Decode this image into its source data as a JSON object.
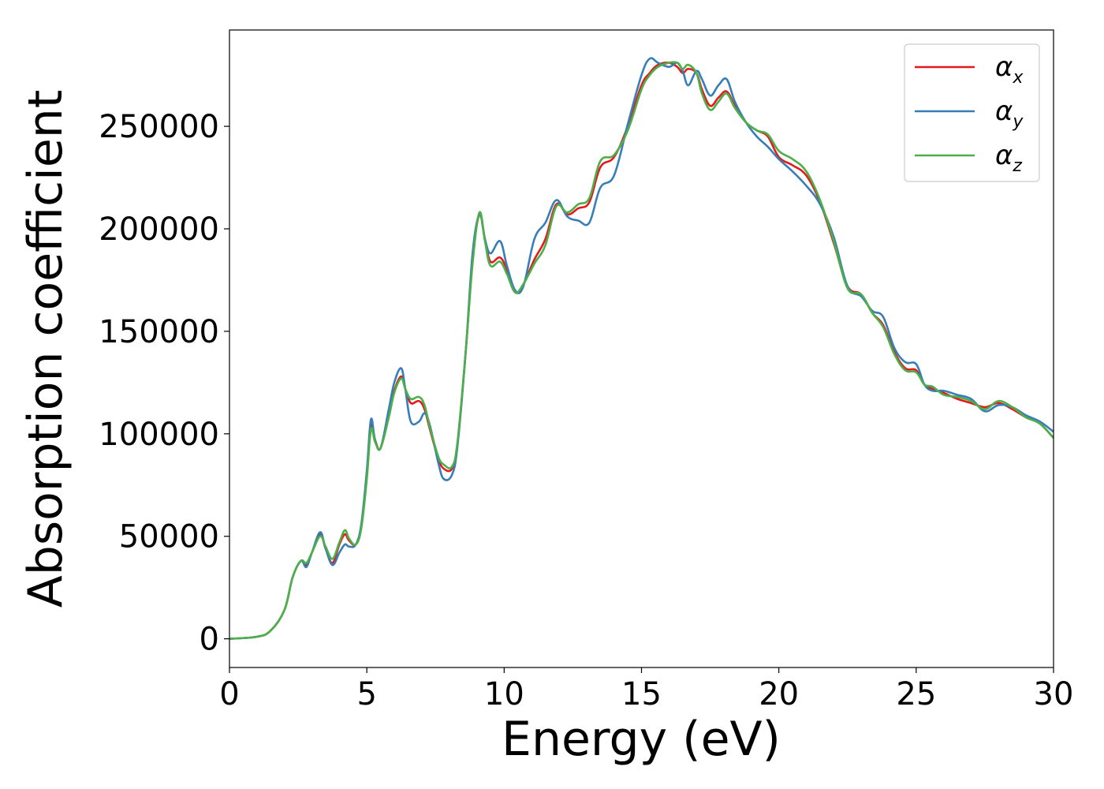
{
  "chart_data": {
    "type": "line",
    "xlabel": "Energy (eV)",
    "ylabel": "Absorption coefficient",
    "xlim": [
      0,
      30
    ],
    "ylim": [
      -14000,
      297000
    ],
    "xticks": [
      0,
      5,
      10,
      15,
      20,
      25,
      30
    ],
    "yticks": [
      0,
      50000,
      100000,
      150000,
      200000,
      250000
    ],
    "xtick_labels": [
      "0",
      "5",
      "10",
      "15",
      "20",
      "25",
      "30"
    ],
    "ytick_labels": [
      "0",
      "50000",
      "100000",
      "150000",
      "200000",
      "250000"
    ],
    "grid": false,
    "legend_position": "top-right",
    "series": [
      {
        "name": "α",
        "subscript": "x",
        "color": "#e41a1c",
        "x": [
          0,
          1.0,
          1.5,
          2.0,
          2.3,
          2.6,
          2.8,
          3.0,
          3.3,
          3.5,
          3.75,
          4.0,
          4.2,
          4.35,
          4.6,
          4.8,
          5.0,
          5.15,
          5.3,
          5.5,
          5.8,
          6.0,
          6.25,
          6.4,
          6.6,
          6.9,
          7.1,
          7.3,
          7.6,
          7.8,
          8.1,
          8.3,
          8.6,
          8.85,
          9.1,
          9.3,
          9.5,
          9.85,
          10.1,
          10.4,
          10.7,
          11.1,
          11.5,
          11.9,
          12.3,
          12.7,
          13.1,
          13.5,
          14.0,
          14.5,
          15.0,
          15.3,
          15.6,
          16.0,
          16.3,
          16.5,
          16.7,
          17.0,
          17.2,
          17.5,
          17.8,
          18.1,
          18.4,
          18.8,
          19.2,
          19.6,
          20.0,
          20.5,
          21.0,
          21.5,
          22.0,
          22.5,
          23.0,
          23.4,
          23.8,
          24.2,
          24.6,
          25.0,
          25.3,
          25.6,
          26.0,
          26.5,
          27.0,
          27.5,
          28.0,
          28.5,
          29.0,
          29.5,
          30.0
        ],
        "y": [
          0,
          1000,
          4000,
          14000,
          30000,
          38000,
          36000,
          42000,
          51000,
          44000,
          37000,
          46000,
          51000,
          48000,
          46000,
          55000,
          80000,
          104000,
          97000,
          93000,
          110000,
          121000,
          128000,
          122000,
          115000,
          116000,
          112000,
          102000,
          88000,
          83000,
          83000,
          95000,
          140000,
          185000,
          207000,
          195000,
          184000,
          186000,
          180000,
          169000,
          173000,
          185000,
          195000,
          212000,
          207000,
          210000,
          213000,
          230000,
          235000,
          250000,
          270000,
          276000,
          280000,
          281000,
          279000,
          276000,
          278000,
          276000,
          268000,
          260000,
          264000,
          267000,
          260000,
          252000,
          248000,
          245000,
          235000,
          231000,
          226000,
          213000,
          193000,
          172000,
          168000,
          159000,
          153000,
          140000,
          132000,
          131000,
          124000,
          122000,
          120000,
          117000,
          115000,
          113000,
          115000,
          112000,
          108000,
          105000,
          98000
        ]
      },
      {
        "name": "α",
        "subscript": "y",
        "color": "#377eb8",
        "x": [
          0,
          1.0,
          1.5,
          2.0,
          2.3,
          2.6,
          2.8,
          3.0,
          3.3,
          3.5,
          3.75,
          4.0,
          4.2,
          4.35,
          4.6,
          4.8,
          5.0,
          5.15,
          5.3,
          5.5,
          5.8,
          6.0,
          6.25,
          6.4,
          6.6,
          6.9,
          7.1,
          7.3,
          7.6,
          7.8,
          8.1,
          8.3,
          8.6,
          8.85,
          9.1,
          9.3,
          9.5,
          9.85,
          10.1,
          10.4,
          10.7,
          11.1,
          11.5,
          11.9,
          12.3,
          12.7,
          13.1,
          13.5,
          14.0,
          14.5,
          15.0,
          15.3,
          15.6,
          16.0,
          16.3,
          16.5,
          16.7,
          17.0,
          17.2,
          17.5,
          17.8,
          18.1,
          18.4,
          18.8,
          19.2,
          19.6,
          20.0,
          20.5,
          21.0,
          21.5,
          22.0,
          22.5,
          23.0,
          23.4,
          23.8,
          24.2,
          24.6,
          25.0,
          25.3,
          25.6,
          26.0,
          26.5,
          27.0,
          27.5,
          28.0,
          28.5,
          29.0,
          29.5,
          30.0
        ],
        "y": [
          0,
          1000,
          4000,
          14000,
          30000,
          38000,
          35000,
          42000,
          52000,
          44000,
          36000,
          42000,
          46000,
          45000,
          46000,
          56000,
          82000,
          107000,
          97000,
          93000,
          112000,
          125000,
          132000,
          122000,
          106000,
          106000,
          110000,
          104000,
          86000,
          78000,
          80000,
          94000,
          140000,
          188000,
          207000,
          195000,
          188000,
          194000,
          182000,
          170000,
          172000,
          195000,
          203000,
          214000,
          206000,
          204000,
          203000,
          220000,
          226000,
          251000,
          275000,
          283000,
          281000,
          279000,
          281000,
          277000,
          270000,
          277000,
          273000,
          265000,
          270000,
          273000,
          262000,
          252000,
          245000,
          240000,
          234000,
          228000,
          221000,
          212000,
          196000,
          172000,
          167000,
          160000,
          157000,
          142000,
          135000,
          134000,
          124000,
          121000,
          121000,
          119000,
          117000,
          111000,
          114000,
          113000,
          109000,
          106000,
          101000
        ]
      },
      {
        "name": "α",
        "subscript": "z",
        "color": "#4daf4a",
        "x": [
          0,
          1.0,
          1.5,
          2.0,
          2.3,
          2.6,
          2.8,
          3.0,
          3.3,
          3.5,
          3.75,
          4.0,
          4.2,
          4.35,
          4.6,
          4.8,
          5.0,
          5.15,
          5.3,
          5.5,
          5.8,
          6.0,
          6.25,
          6.4,
          6.6,
          6.9,
          7.1,
          7.3,
          7.6,
          7.8,
          8.1,
          8.3,
          8.6,
          8.85,
          9.1,
          9.3,
          9.5,
          9.85,
          10.1,
          10.4,
          10.7,
          11.1,
          11.5,
          11.9,
          12.3,
          12.7,
          13.1,
          13.5,
          14.0,
          14.5,
          15.0,
          15.3,
          15.6,
          16.0,
          16.3,
          16.5,
          16.7,
          17.0,
          17.2,
          17.5,
          17.8,
          18.1,
          18.4,
          18.8,
          19.2,
          19.6,
          20.0,
          20.5,
          21.0,
          21.5,
          22.0,
          22.5,
          23.0,
          23.4,
          23.8,
          24.2,
          24.6,
          25.0,
          25.3,
          25.6,
          26.0,
          26.5,
          27.0,
          27.5,
          28.0,
          28.5,
          29.0,
          29.5,
          30.0
        ],
        "y": [
          0,
          1000,
          4000,
          14000,
          30000,
          38000,
          37000,
          42000,
          50000,
          45000,
          39000,
          47000,
          53000,
          49000,
          46000,
          54000,
          78000,
          102000,
          96000,
          93000,
          108000,
          120000,
          127000,
          122000,
          117000,
          118000,
          114000,
          103000,
          89000,
          85000,
          84000,
          96000,
          140000,
          183000,
          208000,
          194000,
          182000,
          184000,
          178000,
          169000,
          173000,
          183000,
          192000,
          211000,
          208000,
          212000,
          215000,
          233000,
          236000,
          248000,
          268000,
          275000,
          279000,
          281000,
          281000,
          278000,
          280000,
          276000,
          266000,
          258000,
          262000,
          266000,
          259000,
          252000,
          248000,
          246000,
          238000,
          234000,
          228000,
          214000,
          194000,
          171000,
          168000,
          159000,
          152000,
          139000,
          131000,
          130000,
          124000,
          123000,
          119000,
          118000,
          116000,
          112000,
          116000,
          113000,
          108000,
          105000,
          98000
        ]
      }
    ]
  }
}
